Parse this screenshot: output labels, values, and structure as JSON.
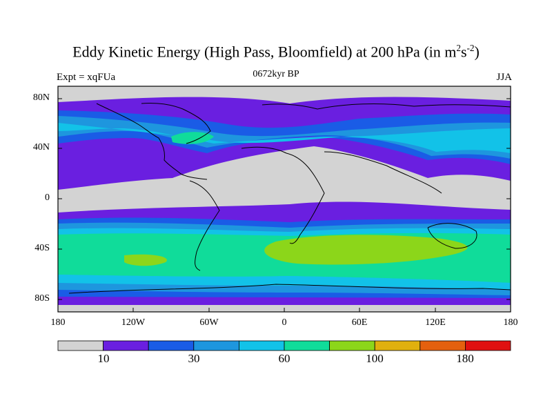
{
  "title_main": "Eddy Kinetic Energy (High Pass, Bloomfield) at 200 hPa (in m",
  "title_sup1": "2",
  "title_mid": "s",
  "title_sup2": "-2",
  "title_end": ")",
  "subtitle": "0672kyr BP",
  "left_label": "Expt = xqFUa",
  "right_label": "JJA",
  "lat_labels": [
    "80N",
    "40N",
    "0",
    "40S",
    "80S"
  ],
  "lon_labels": [
    "180",
    "120W",
    "60W",
    "0",
    "60E",
    "120E",
    "180"
  ],
  "colorbar": {
    "colors": [
      "#d3d3d3",
      "#6a1fe0",
      "#1a5ce6",
      "#1e96de",
      "#12c2e8",
      "#10dc9a",
      "#8cd61a",
      "#e0b00e",
      "#e4600e",
      "#e01010"
    ],
    "labels": [
      "10",
      "30",
      "60",
      "100",
      "180"
    ]
  }
}
